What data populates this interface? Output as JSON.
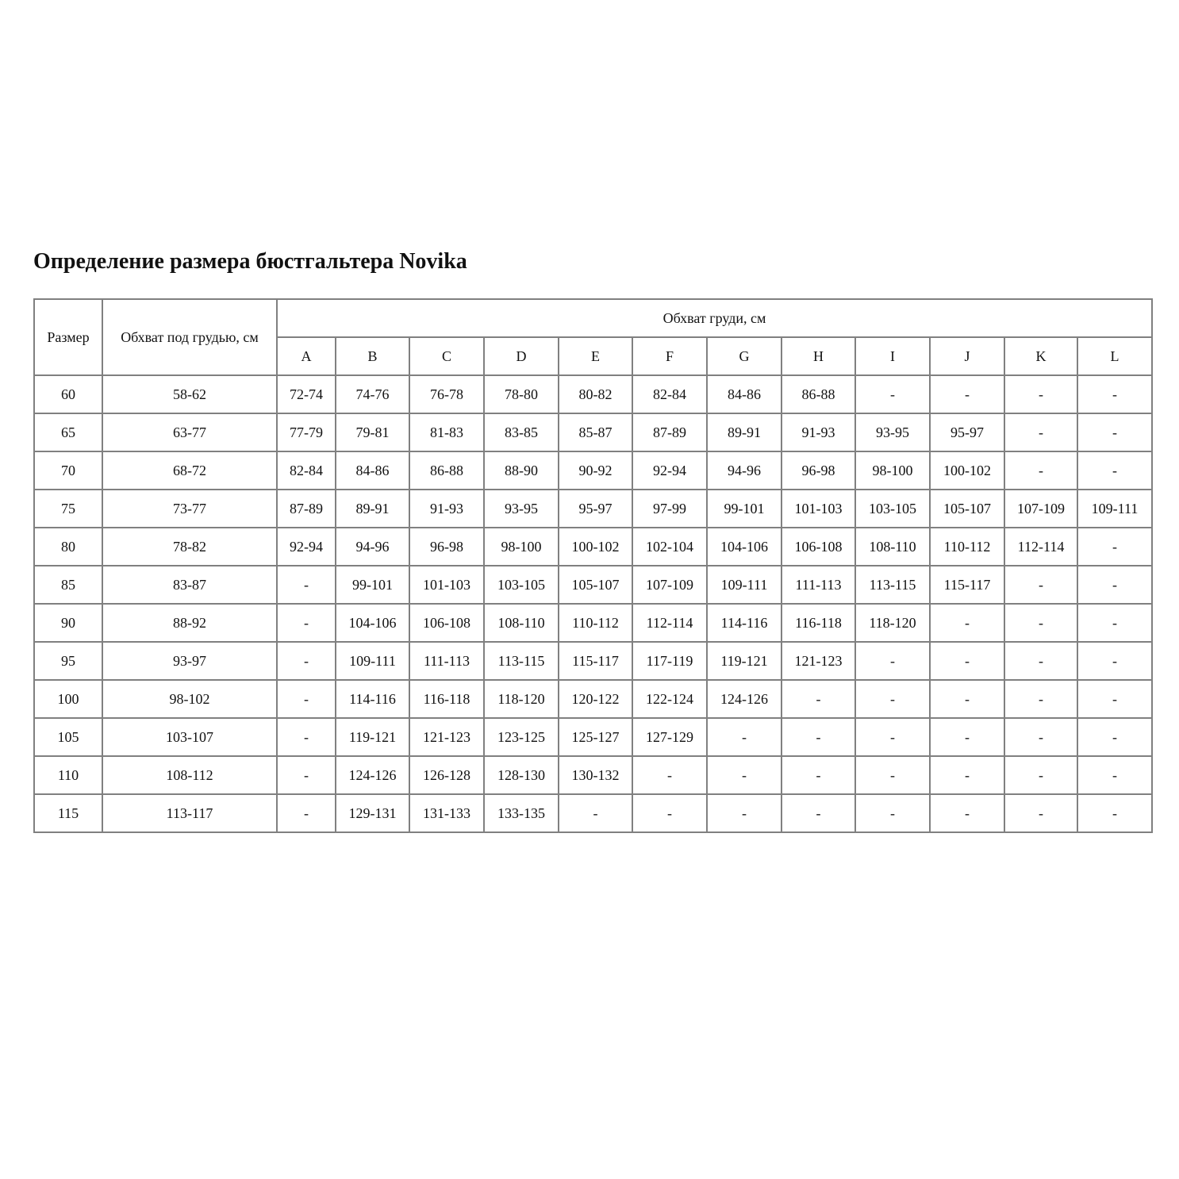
{
  "title": "Определение размера бюстгальтера Novika",
  "table": {
    "headers": {
      "size": "Размер",
      "underbust": "Обхват под грудью, см",
      "bust": "Обхват груди, см",
      "cups": [
        "A",
        "B",
        "C",
        "D",
        "E",
        "F",
        "G",
        "H",
        "I",
        "J",
        "K",
        "L"
      ]
    },
    "rows": [
      {
        "size": "60",
        "underbust": "58-62",
        "cups": [
          "72-74",
          "74-76",
          "76-78",
          "78-80",
          "80-82",
          "82-84",
          "84-86",
          "86-88",
          "-",
          "-",
          "-",
          "-"
        ]
      },
      {
        "size": "65",
        "underbust": "63-77",
        "cups": [
          "77-79",
          "79-81",
          "81-83",
          "83-85",
          "85-87",
          "87-89",
          "89-91",
          "91-93",
          "93-95",
          "95-97",
          "-",
          "-"
        ]
      },
      {
        "size": "70",
        "underbust": "68-72",
        "cups": [
          "82-84",
          "84-86",
          "86-88",
          "88-90",
          "90-92",
          "92-94",
          "94-96",
          "96-98",
          "98-100",
          "100-102",
          "-",
          "-"
        ]
      },
      {
        "size": "75",
        "underbust": "73-77",
        "cups": [
          "87-89",
          "89-91",
          "91-93",
          "93-95",
          "95-97",
          "97-99",
          "99-101",
          "101-103",
          "103-105",
          "105-107",
          "107-109",
          "109-111"
        ]
      },
      {
        "size": "80",
        "underbust": "78-82",
        "cups": [
          "92-94",
          "94-96",
          "96-98",
          "98-100",
          "100-102",
          "102-104",
          "104-106",
          "106-108",
          "108-110",
          "110-112",
          "112-114",
          "-"
        ]
      },
      {
        "size": "85",
        "underbust": "83-87",
        "cups": [
          "-",
          "99-101",
          "101-103",
          "103-105",
          "105-107",
          "107-109",
          "109-111",
          "111-113",
          "113-115",
          "115-117",
          "-",
          "-"
        ]
      },
      {
        "size": "90",
        "underbust": "88-92",
        "cups": [
          "-",
          "104-106",
          "106-108",
          "108-110",
          "110-112",
          "112-114",
          "114-116",
          "116-118",
          "118-120",
          "-",
          "-",
          "-"
        ]
      },
      {
        "size": "95",
        "underbust": "93-97",
        "cups": [
          "-",
          "109-111",
          "111-113",
          "113-115",
          "115-117",
          "117-119",
          "119-121",
          "121-123",
          "-",
          "-",
          "-",
          "-"
        ]
      },
      {
        "size": "100",
        "underbust": "98-102",
        "cups": [
          "-",
          "114-116",
          "116-118",
          "118-120",
          "120-122",
          "122-124",
          "124-126",
          "-",
          "-",
          "-",
          "-",
          "-"
        ]
      },
      {
        "size": "105",
        "underbust": "103-107",
        "cups": [
          "-",
          "119-121",
          "121-123",
          "123-125",
          "125-127",
          "127-129",
          "-",
          "-",
          "-",
          "-",
          "-",
          "-"
        ]
      },
      {
        "size": "110",
        "underbust": "108-112",
        "cups": [
          "-",
          "124-126",
          "126-128",
          "128-130",
          "130-132",
          "-",
          "-",
          "-",
          "-",
          "-",
          "-",
          "-"
        ]
      },
      {
        "size": "115",
        "underbust": "113-117",
        "cups": [
          "-",
          "129-131",
          "131-133",
          "133-135",
          "-",
          "-",
          "-",
          "-",
          "-",
          "-",
          "-",
          "-"
        ]
      }
    ]
  }
}
